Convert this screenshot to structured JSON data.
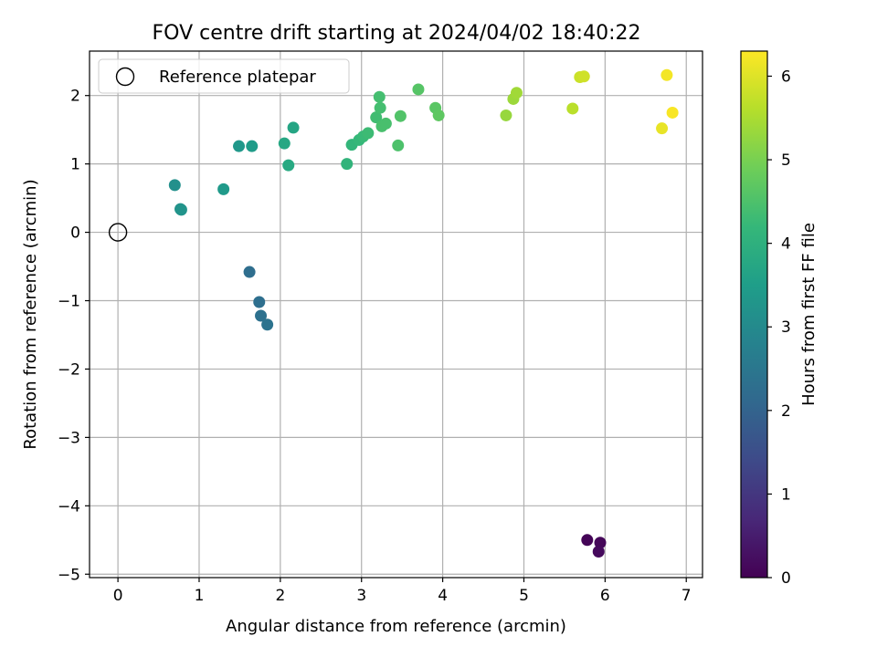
{
  "chart_data": {
    "type": "scatter",
    "title": "FOV centre drift starting at 2024/04/02 18:40:22",
    "xlabel": "Angular distance from reference (arcmin)",
    "ylabel": "Rotation from reference (arcmin)",
    "xlim": [
      -0.35,
      7.2
    ],
    "ylim": [
      -5.05,
      2.65
    ],
    "xticks": [
      0,
      1,
      2,
      3,
      4,
      5,
      6,
      7
    ],
    "yticks": [
      -5,
      -4,
      -3,
      -2,
      -1,
      0,
      1,
      2
    ],
    "xtick_labels": [
      "0",
      "1",
      "2",
      "3",
      "4",
      "5",
      "6",
      "7"
    ],
    "ytick_labels": [
      "−5",
      "−4",
      "−3",
      "−2",
      "−1",
      "0",
      "1",
      "2"
    ],
    "grid": true,
    "legend": {
      "placement": "top-left",
      "entries": [
        "Reference platepar"
      ]
    },
    "colormap": "viridis",
    "colorbar": {
      "label": "Hours from first FF file",
      "range": [
        0,
        6.3
      ],
      "ticks": [
        0,
        1,
        2,
        3,
        4,
        5,
        6
      ],
      "tick_labels": [
        "0",
        "1",
        "2",
        "3",
        "4",
        "5",
        "6"
      ]
    },
    "reference_point": {
      "x": 0,
      "y": 0
    },
    "points": [
      {
        "x": 5.78,
        "y": -4.5,
        "c": 0.05
      },
      {
        "x": 5.94,
        "y": -4.54,
        "c": 0.1
      },
      {
        "x": 5.92,
        "y": -4.67,
        "c": 0.15
      },
      {
        "x": 1.62,
        "y": -0.58,
        "c": 2.25
      },
      {
        "x": 1.74,
        "y": -1.02,
        "c": 2.3
      },
      {
        "x": 1.76,
        "y": -1.22,
        "c": 2.35
      },
      {
        "x": 1.84,
        "y": -1.35,
        "c": 2.4
      },
      {
        "x": 0.7,
        "y": 0.69,
        "c": 3.15
      },
      {
        "x": 0.77,
        "y": 0.34,
        "c": 3.2
      },
      {
        "x": 0.78,
        "y": 0.33,
        "c": 3.25
      },
      {
        "x": 1.3,
        "y": 0.63,
        "c": 3.4
      },
      {
        "x": 1.49,
        "y": 1.26,
        "c": 3.35
      },
      {
        "x": 1.65,
        "y": 1.26,
        "c": 3.45
      },
      {
        "x": 2.05,
        "y": 1.3,
        "c": 3.75
      },
      {
        "x": 2.1,
        "y": 0.98,
        "c": 3.8
      },
      {
        "x": 2.16,
        "y": 1.53,
        "c": 3.7
      },
      {
        "x": 2.82,
        "y": 1.0,
        "c": 4.1
      },
      {
        "x": 2.88,
        "y": 1.28,
        "c": 4.15
      },
      {
        "x": 2.97,
        "y": 1.35,
        "c": 4.2
      },
      {
        "x": 3.02,
        "y": 1.4,
        "c": 4.25
      },
      {
        "x": 3.08,
        "y": 1.45,
        "c": 4.3
      },
      {
        "x": 3.18,
        "y": 1.68,
        "c": 4.35
      },
      {
        "x": 3.22,
        "y": 1.98,
        "c": 4.4
      },
      {
        "x": 3.23,
        "y": 1.82,
        "c": 4.4
      },
      {
        "x": 3.25,
        "y": 1.55,
        "c": 4.45
      },
      {
        "x": 3.3,
        "y": 1.59,
        "c": 4.45
      },
      {
        "x": 3.45,
        "y": 1.27,
        "c": 4.5
      },
      {
        "x": 3.48,
        "y": 1.7,
        "c": 4.55
      },
      {
        "x": 3.7,
        "y": 2.09,
        "c": 4.6
      },
      {
        "x": 3.91,
        "y": 1.82,
        "c": 4.65
      },
      {
        "x": 3.95,
        "y": 1.71,
        "c": 4.7
      },
      {
        "x": 4.78,
        "y": 1.71,
        "c": 5.3
      },
      {
        "x": 4.87,
        "y": 1.95,
        "c": 5.35
      },
      {
        "x": 4.91,
        "y": 2.04,
        "c": 5.4
      },
      {
        "x": 5.6,
        "y": 1.81,
        "c": 5.65
      },
      {
        "x": 5.69,
        "y": 2.27,
        "c": 5.8
      },
      {
        "x": 5.74,
        "y": 2.28,
        "c": 5.85
      },
      {
        "x": 6.7,
        "y": 1.52,
        "c": 6.1
      },
      {
        "x": 6.76,
        "y": 2.3,
        "c": 6.2
      },
      {
        "x": 6.83,
        "y": 1.75,
        "c": 6.25
      }
    ]
  },
  "colors": {
    "grid": "#b0b0b0",
    "axes": "#000000",
    "viridis": [
      "#440154",
      "#482878",
      "#3e4a89",
      "#31688e",
      "#26828e",
      "#1f9e89",
      "#35b779",
      "#6ece58",
      "#b5de2b",
      "#fde725"
    ]
  }
}
